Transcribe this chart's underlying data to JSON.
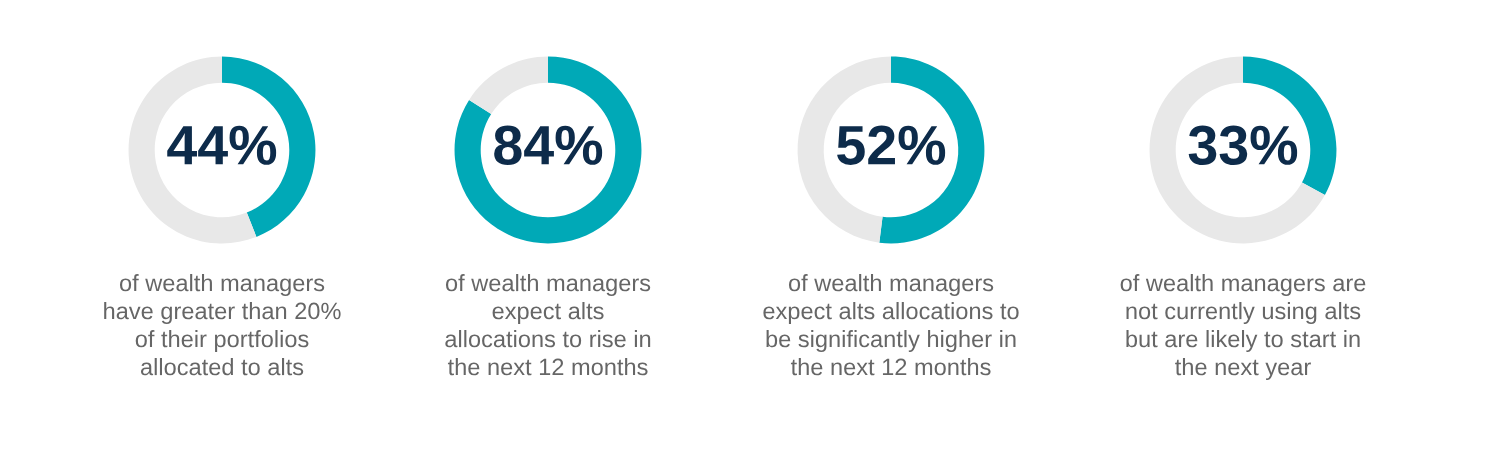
{
  "chart_data": [
    {
      "type": "donut",
      "categories": [
        null,
        null
      ],
      "values": [
        44,
        56
      ],
      "colors": [
        "#00a9b7",
        "#e8e8e8"
      ],
      "value_labels": [
        "44%",
        null
      ],
      "annotations": [
        "of wealth managers\nhave greater than 20%\nof their portfolios\nallocated to alts"
      ]
    },
    {
      "type": "donut",
      "categories": [
        null,
        null
      ],
      "values": [
        84,
        16
      ],
      "colors": [
        "#00a9b7",
        "#e8e8e8"
      ],
      "value_labels": [
        "84%",
        null
      ],
      "annotations": [
        "of wealth managers\nexpect alts\nallocations to rise in\nthe next 12 months"
      ]
    },
    {
      "type": "donut",
      "categories": [
        null,
        null
      ],
      "values": [
        52,
        48
      ],
      "colors": [
        "#00a9b7",
        "#e8e8e8"
      ],
      "value_labels": [
        "52%",
        null
      ],
      "annotations": [
        "of wealth managers\nexpect alts allocations to\nbe significantly higher in\nthe next 12 months"
      ]
    },
    {
      "type": "donut",
      "categories": [
        null,
        null
      ],
      "values": [
        33,
        67
      ],
      "colors": [
        "#00a9b7",
        "#e8e8e8"
      ],
      "value_labels": [
        "33%",
        null
      ],
      "annotations": [
        "of wealth managers are\nnot currently using alts\nbut are likely to start in\nthe next year"
      ]
    }
  ]
}
